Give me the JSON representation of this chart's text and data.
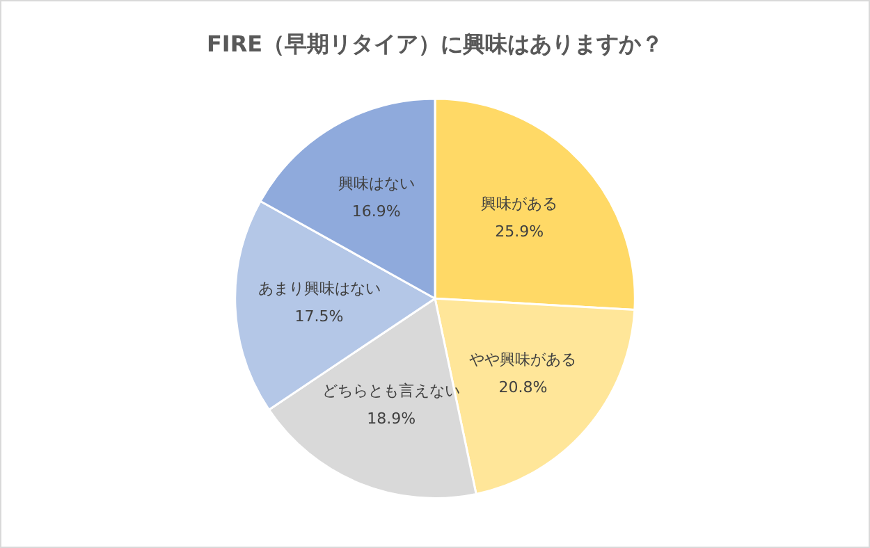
{
  "chart_data": {
    "type": "pie",
    "title": "FIRE（早期リタイア）に興味はありますか？",
    "categories": [
      "興味がある",
      "やや興味がある",
      "どちらとも言えない",
      "あまり興味はない",
      "興味はない"
    ],
    "values": [
      25.9,
      20.8,
      18.9,
      17.5,
      16.9
    ],
    "colors": [
      "#ffd966",
      "#ffe699",
      "#d9d9d9",
      "#b4c7e7",
      "#8faadc"
    ],
    "value_labels": [
      "25.9%",
      "20.8%",
      "18.9%",
      "17.5%",
      "16.9%"
    ],
    "legend": false
  }
}
